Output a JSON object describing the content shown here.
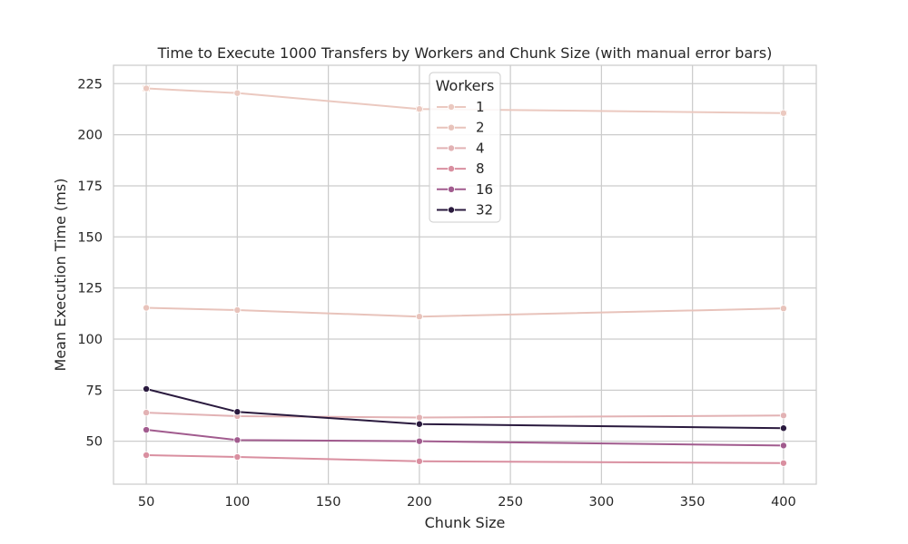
{
  "chart_data": {
    "type": "line",
    "title": "Time to Execute 1000 Transfers by Workers and Chunk Size (with manual error bars)",
    "xlabel": "Chunk Size",
    "ylabel": "Mean Execution Time (ms)",
    "xlim": [
      32,
      418
    ],
    "ylim": [
      29,
      234
    ],
    "xticks": [
      50,
      100,
      150,
      200,
      250,
      300,
      350,
      400
    ],
    "yticks": [
      50,
      75,
      100,
      125,
      150,
      175,
      200,
      225
    ],
    "grid": true,
    "legend": {
      "title": "Workers",
      "placement": "top-center"
    },
    "x": [
      50,
      100,
      200,
      400
    ],
    "series": [
      {
        "name": "1",
        "color": "#ebc9c0",
        "marker_color": "#e0845a",
        "values": [
          222.7,
          220.4,
          212.6,
          210.6
        ],
        "errors": [
          1.0,
          0.5,
          0.8,
          0.8
        ]
      },
      {
        "name": "2",
        "color": "#e8c3bb",
        "marker_color": "#86b88a",
        "values": [
          115.3,
          114.2,
          111.0,
          115.0
        ],
        "errors": [
          0.5,
          0.5,
          0.5,
          0.5
        ]
      },
      {
        "name": "4",
        "color": "#e2b2b4",
        "marker_color": "#c9a0c8",
        "values": [
          64.0,
          62.3,
          61.6,
          62.6
        ],
        "errors": [
          0.5,
          0.5,
          0.5,
          0.5
        ]
      },
      {
        "name": "8",
        "color": "#d98fa0",
        "marker_color": "#d4a27a",
        "values": [
          43.2,
          42.3,
          40.2,
          39.3
        ],
        "errors": [
          0.5,
          0.5,
          0.5,
          0.5
        ]
      },
      {
        "name": "16",
        "color": "#a15b8e",
        "marker_color": "#c05a9c",
        "values": [
          55.6,
          50.6,
          50.0,
          47.9
        ],
        "errors": [
          0.5,
          0.5,
          0.5,
          0.5
        ]
      },
      {
        "name": "32",
        "color": "#2a1a3e",
        "marker_color": "#2a1a3e",
        "values": [
          75.6,
          64.4,
          58.4,
          56.4
        ],
        "errors": [
          0.5,
          0.5,
          0.5,
          0.5
        ]
      }
    ]
  }
}
